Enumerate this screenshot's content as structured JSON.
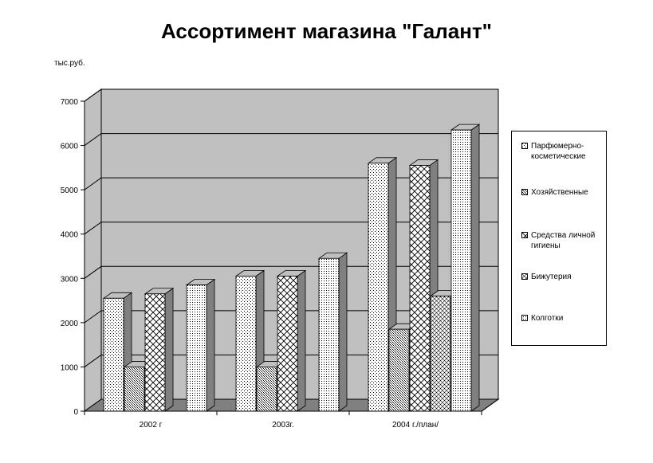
{
  "chart_data": {
    "type": "bar",
    "title": "Ассортимент магазина \"Галант\"",
    "ylabel": "тыс.руб.",
    "xlabel": "",
    "categories": [
      "2002 г",
      "2003г.",
      "2004 г./план/"
    ],
    "ylim": [
      0,
      7000
    ],
    "yticks": [
      "0",
      "1000",
      "2000",
      "3000",
      "4000",
      "5000",
      "6000",
      "7000"
    ],
    "grid": true,
    "legend_position": "right",
    "series": [
      {
        "name": "Парфюмерно-косметические",
        "values": [
          2550,
          3050,
          5600
        ],
        "pattern": "dots-sparse"
      },
      {
        "name": "Хозяйственные",
        "values": [
          1000,
          1000,
          1850
        ],
        "pattern": "dots-dense"
      },
      {
        "name": "Средства личной гигиены",
        "values": [
          2650,
          3050,
          5550
        ],
        "pattern": "cross"
      },
      {
        "name": "Бижутерия",
        "values": [
          null,
          null,
          2600
        ],
        "pattern": "hatch"
      },
      {
        "name": "Колготки",
        "values": [
          2850,
          3450,
          6350
        ],
        "pattern": "dots-fine"
      }
    ]
  },
  "colors": {
    "wall": "#c0c0c0",
    "floor": "#808080",
    "bar_face": "#ffffff",
    "side": "#808080",
    "top": "#c0c0c0",
    "grid": "#000000"
  }
}
